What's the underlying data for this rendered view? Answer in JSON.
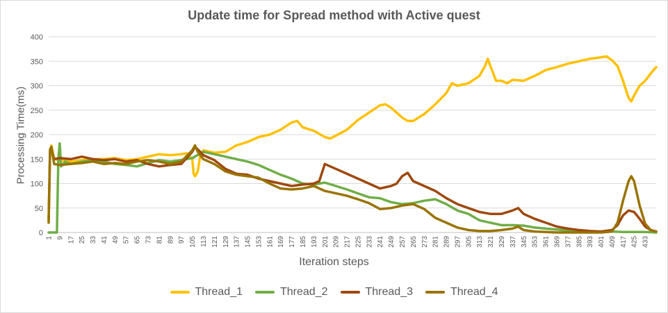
{
  "chart_data": {
    "type": "line",
    "title": "Update time for Spread method with Active quest",
    "xlabel": "Iteration steps",
    "ylabel": "Processing Time(ms)",
    "ylim": [
      0,
      400
    ],
    "yticks": [
      0,
      50,
      100,
      150,
      200,
      250,
      300,
      350,
      400
    ],
    "xlim": [
      1,
      441
    ],
    "xticks": [
      1,
      9,
      17,
      25,
      33,
      41,
      49,
      57,
      65,
      73,
      81,
      89,
      97,
      105,
      113,
      121,
      129,
      137,
      145,
      153,
      161,
      169,
      177,
      185,
      193,
      201,
      209,
      217,
      225,
      233,
      241,
      249,
      257,
      265,
      273,
      281,
      289,
      297,
      305,
      313,
      321,
      329,
      337,
      345,
      353,
      361,
      369,
      377,
      385,
      393,
      401,
      409,
      417,
      425,
      433
    ],
    "grid": "horizontal",
    "legend_position": "bottom",
    "series": [
      {
        "name": "Thread_1",
        "color": "#FFC000",
        "points": [
          [
            1,
            30
          ],
          [
            2,
            165
          ],
          [
            3,
            178
          ],
          [
            5,
            150
          ],
          [
            9,
            148
          ],
          [
            17,
            145
          ],
          [
            25,
            148
          ],
          [
            33,
            150
          ],
          [
            41,
            150
          ],
          [
            49,
            152
          ],
          [
            57,
            148
          ],
          [
            65,
            150
          ],
          [
            73,
            155
          ],
          [
            81,
            160
          ],
          [
            89,
            158
          ],
          [
            97,
            160
          ],
          [
            101,
            162
          ],
          [
            105,
            150
          ],
          [
            106,
            120
          ],
          [
            107,
            115
          ],
          [
            109,
            125
          ],
          [
            111,
            160
          ],
          [
            113,
            168
          ],
          [
            121,
            163
          ],
          [
            129,
            165
          ],
          [
            137,
            178
          ],
          [
            145,
            185
          ],
          [
            153,
            195
          ],
          [
            161,
            200
          ],
          [
            169,
            210
          ],
          [
            177,
            225
          ],
          [
            181,
            228
          ],
          [
            185,
            215
          ],
          [
            193,
            208
          ],
          [
            201,
            195
          ],
          [
            205,
            192
          ],
          [
            209,
            198
          ],
          [
            217,
            210
          ],
          [
            225,
            230
          ],
          [
            233,
            245
          ],
          [
            241,
            260
          ],
          [
            245,
            262
          ],
          [
            249,
            255
          ],
          [
            257,
            235
          ],
          [
            261,
            228
          ],
          [
            265,
            228
          ],
          [
            269,
            235
          ],
          [
            273,
            242
          ],
          [
            281,
            262
          ],
          [
            289,
            285
          ],
          [
            293,
            305
          ],
          [
            297,
            300
          ],
          [
            305,
            305
          ],
          [
            313,
            320
          ],
          [
            317,
            340
          ],
          [
            319,
            355
          ],
          [
            321,
            340
          ],
          [
            325,
            310
          ],
          [
            329,
            310
          ],
          [
            333,
            305
          ],
          [
            337,
            312
          ],
          [
            345,
            310
          ],
          [
            353,
            320
          ],
          [
            361,
            332
          ],
          [
            369,
            338
          ],
          [
            377,
            345
          ],
          [
            385,
            350
          ],
          [
            393,
            355
          ],
          [
            401,
            358
          ],
          [
            405,
            360
          ],
          [
            409,
            352
          ],
          [
            413,
            340
          ],
          [
            417,
            310
          ],
          [
            421,
            275
          ],
          [
            423,
            268
          ],
          [
            425,
            280
          ],
          [
            429,
            300
          ],
          [
            433,
            310
          ],
          [
            437,
            325
          ],
          [
            441,
            338
          ]
        ]
      },
      {
        "name": "Thread_2",
        "color": "#70AD47",
        "points": [
          [
            1,
            0
          ],
          [
            5,
            0
          ],
          [
            7,
            0
          ],
          [
            8,
            150
          ],
          [
            9,
            182
          ],
          [
            10,
            135
          ],
          [
            13,
            145
          ],
          [
            17,
            140
          ],
          [
            25,
            145
          ],
          [
            33,
            148
          ],
          [
            41,
            145
          ],
          [
            49,
            140
          ],
          [
            57,
            138
          ],
          [
            65,
            135
          ],
          [
            73,
            142
          ],
          [
            81,
            148
          ],
          [
            89,
            145
          ],
          [
            97,
            148
          ],
          [
            105,
            152
          ],
          [
            113,
            165
          ],
          [
            121,
            160
          ],
          [
            129,
            155
          ],
          [
            137,
            150
          ],
          [
            145,
            145
          ],
          [
            153,
            138
          ],
          [
            161,
            128
          ],
          [
            169,
            118
          ],
          [
            177,
            110
          ],
          [
            185,
            100
          ],
          [
            193,
            98
          ],
          [
            201,
            102
          ],
          [
            209,
            95
          ],
          [
            217,
            88
          ],
          [
            225,
            80
          ],
          [
            233,
            72
          ],
          [
            241,
            70
          ],
          [
            249,
            62
          ],
          [
            257,
            58
          ],
          [
            265,
            60
          ],
          [
            273,
            65
          ],
          [
            281,
            68
          ],
          [
            289,
            58
          ],
          [
            297,
            45
          ],
          [
            305,
            38
          ],
          [
            313,
            25
          ],
          [
            321,
            20
          ],
          [
            329,
            15
          ],
          [
            337,
            15
          ],
          [
            345,
            14
          ],
          [
            353,
            10
          ],
          [
            361,
            8
          ],
          [
            369,
            6
          ],
          [
            377,
            4
          ],
          [
            385,
            3
          ],
          [
            393,
            2
          ],
          [
            401,
            2
          ],
          [
            409,
            2
          ],
          [
            417,
            1
          ],
          [
            425,
            1
          ],
          [
            433,
            1
          ],
          [
            441,
            0
          ]
        ]
      },
      {
        "name": "Thread_3",
        "color": "#9E480E",
        "points": [
          [
            1,
            25
          ],
          [
            2,
            165
          ],
          [
            3,
            170
          ],
          [
            5,
            150
          ],
          [
            9,
            152
          ],
          [
            17,
            150
          ],
          [
            25,
            155
          ],
          [
            33,
            150
          ],
          [
            41,
            148
          ],
          [
            49,
            150
          ],
          [
            57,
            145
          ],
          [
            65,
            148
          ],
          [
            73,
            140
          ],
          [
            81,
            135
          ],
          [
            89,
            138
          ],
          [
            97,
            140
          ],
          [
            105,
            165
          ],
          [
            107,
            175
          ],
          [
            109,
            170
          ],
          [
            113,
            158
          ],
          [
            121,
            148
          ],
          [
            129,
            130
          ],
          [
            137,
            120
          ],
          [
            145,
            118
          ],
          [
            153,
            110
          ],
          [
            161,
            105
          ],
          [
            169,
            100
          ],
          [
            177,
            95
          ],
          [
            185,
            98
          ],
          [
            193,
            100
          ],
          [
            197,
            105
          ],
          [
            201,
            140
          ],
          [
            205,
            135
          ],
          [
            209,
            130
          ],
          [
            217,
            120
          ],
          [
            225,
            110
          ],
          [
            233,
            100
          ],
          [
            241,
            90
          ],
          [
            249,
            95
          ],
          [
            253,
            100
          ],
          [
            257,
            115
          ],
          [
            261,
            122
          ],
          [
            265,
            105
          ],
          [
            273,
            95
          ],
          [
            281,
            85
          ],
          [
            289,
            70
          ],
          [
            297,
            58
          ],
          [
            305,
            50
          ],
          [
            313,
            42
          ],
          [
            321,
            38
          ],
          [
            329,
            38
          ],
          [
            337,
            45
          ],
          [
            341,
            50
          ],
          [
            345,
            38
          ],
          [
            353,
            28
          ],
          [
            361,
            20
          ],
          [
            369,
            12
          ],
          [
            377,
            8
          ],
          [
            385,
            5
          ],
          [
            393,
            3
          ],
          [
            401,
            2
          ],
          [
            409,
            5
          ],
          [
            413,
            15
          ],
          [
            417,
            35
          ],
          [
            421,
            45
          ],
          [
            425,
            42
          ],
          [
            429,
            28
          ],
          [
            433,
            12
          ],
          [
            437,
            5
          ],
          [
            441,
            2
          ]
        ]
      },
      {
        "name": "Thread_4",
        "color": "#997300",
        "points": [
          [
            1,
            20
          ],
          [
            2,
            170
          ],
          [
            3,
            175
          ],
          [
            5,
            140
          ],
          [
            9,
            138
          ],
          [
            17,
            140
          ],
          [
            25,
            142
          ],
          [
            33,
            145
          ],
          [
            41,
            140
          ],
          [
            49,
            142
          ],
          [
            57,
            140
          ],
          [
            65,
            145
          ],
          [
            73,
            148
          ],
          [
            81,
            145
          ],
          [
            89,
            140
          ],
          [
            97,
            145
          ],
          [
            105,
            168
          ],
          [
            107,
            178
          ],
          [
            109,
            165
          ],
          [
            113,
            150
          ],
          [
            121,
            140
          ],
          [
            129,
            125
          ],
          [
            137,
            118
          ],
          [
            145,
            115
          ],
          [
            153,
            112
          ],
          [
            161,
            100
          ],
          [
            169,
            90
          ],
          [
            177,
            88
          ],
          [
            185,
            90
          ],
          [
            193,
            95
          ],
          [
            201,
            85
          ],
          [
            209,
            80
          ],
          [
            217,
            75
          ],
          [
            225,
            68
          ],
          [
            233,
            60
          ],
          [
            241,
            48
          ],
          [
            249,
            50
          ],
          [
            257,
            55
          ],
          [
            265,
            58
          ],
          [
            273,
            48
          ],
          [
            281,
            30
          ],
          [
            289,
            20
          ],
          [
            297,
            10
          ],
          [
            305,
            5
          ],
          [
            313,
            3
          ],
          [
            321,
            3
          ],
          [
            329,
            5
          ],
          [
            337,
            8
          ],
          [
            341,
            12
          ],
          [
            345,
            5
          ],
          [
            353,
            2
          ],
          [
            361,
            1
          ],
          [
            369,
            0
          ],
          [
            377,
            0
          ],
          [
            385,
            0
          ],
          [
            393,
            0
          ],
          [
            401,
            0
          ],
          [
            409,
            2
          ],
          [
            413,
            20
          ],
          [
            417,
            65
          ],
          [
            421,
            105
          ],
          [
            423,
            115
          ],
          [
            425,
            105
          ],
          [
            429,
            55
          ],
          [
            433,
            18
          ],
          [
            437,
            5
          ],
          [
            441,
            2
          ]
        ]
      }
    ]
  }
}
